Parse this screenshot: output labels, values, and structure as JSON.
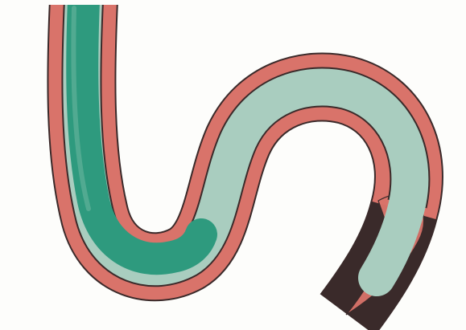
{
  "colors": {
    "background": "#fdfdfb",
    "outline": "#3a2a2a",
    "outer_band": "#d9736a",
    "middle_band": "#a9cdbf",
    "inner_band": "#2e9a7e"
  },
  "image": {
    "subject-icon": "hand-drawn-s-curve-tube-icon"
  }
}
